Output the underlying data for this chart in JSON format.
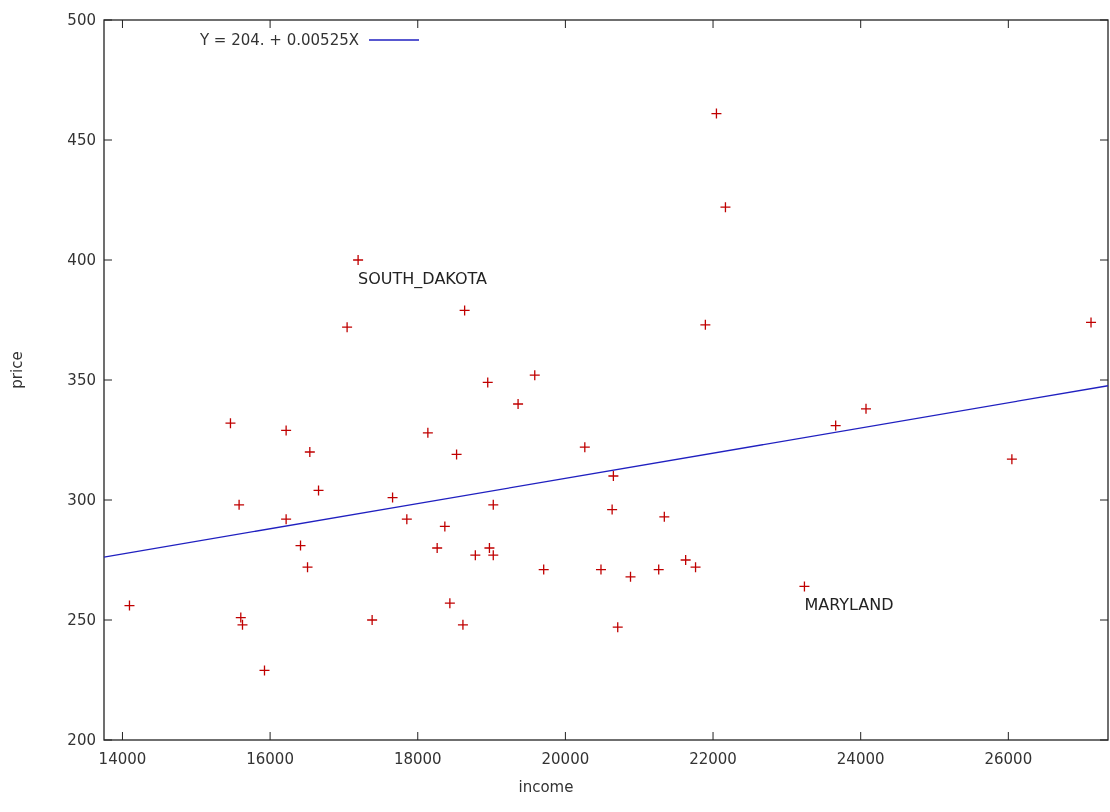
{
  "chart_data": {
    "type": "scatter",
    "xlabel": "income",
    "ylabel": "price",
    "xlim": [
      13750,
      27350
    ],
    "ylim": [
      200,
      500
    ],
    "xticks": [
      14000,
      16000,
      18000,
      20000,
      22000,
      24000,
      26000
    ],
    "yticks": [
      200,
      250,
      300,
      350,
      400,
      450,
      500
    ],
    "grid": false,
    "legend": "top left",
    "series": [
      {
        "color": "#c00000",
        "marker": "cross",
        "x": [
          15463,
          16217,
          16538,
          16656,
          15580,
          16217,
          16412,
          16507,
          14095,
          15603,
          15626,
          15924,
          17659,
          17852,
          18137,
          18367,
          18263,
          18435,
          17382,
          18526,
          17043,
          17192,
          22046,
          22168,
          18635,
          21896,
          18948,
          19585,
          27120,
          19359,
          20263,
          20650,
          20633,
          19023,
          21340,
          18780,
          18971,
          19023,
          19706,
          20482,
          20882,
          21264,
          21629,
          21763,
          18612,
          20709,
          23238,
          23661,
          24072,
          26048
        ],
        "values": [
          332,
          329,
          320,
          304,
          298,
          292,
          281,
          272,
          256,
          251,
          248,
          229,
          301,
          292,
          328,
          289,
          280,
          257,
          250,
          319,
          372,
          400,
          461,
          422,
          379,
          373,
          349,
          352,
          374,
          340,
          322,
          310,
          296,
          298,
          293,
          277,
          280,
          277,
          271,
          271,
          268,
          271,
          275,
          272,
          248,
          247,
          264,
          331,
          338,
          317
        ]
      },
      {
        "type": "line",
        "name": "Y = 204. + 0.00525X",
        "color": "#2020c0",
        "line_style": "solid",
        "marker": "none",
        "x": [
          13750,
          27350
        ],
        "values": [
          276.2,
          347.6
        ]
      }
    ],
    "annotations": [
      {
        "text": "SOUTH_DAKOTA",
        "x": 17192,
        "y": 400
      },
      {
        "text": "MARYLAND",
        "x": 23238,
        "y": 264
      }
    ]
  }
}
